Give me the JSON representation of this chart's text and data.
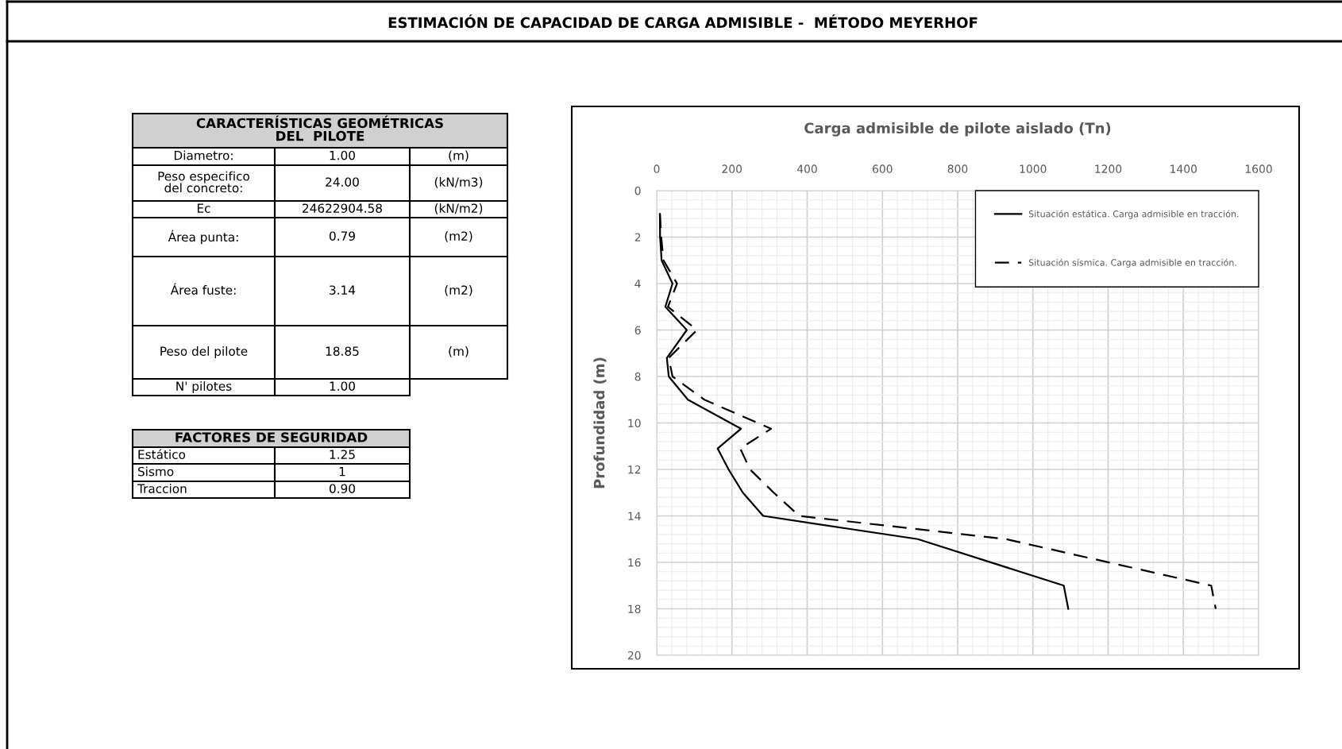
{
  "chart_data": [
    {
      "type": "other",
      "title": "ESTIMACIÓN DE CAPACIDAD DE CARGA ADMISIBLE -  MÉTODO MEYERHOF"
    },
    {
      "type": "other",
      "title": "CARACTERÍSTICAS GEOMÉTRICAS\nDEL  PILOTE",
      "annotations": [
        "Diametro:",
        "1.00",
        "(m)",
        "Peso especifico\ndel concreto:",
        "24.00",
        "(kN/m3)",
        "Ec",
        "24622904.58",
        "(kN/m2)",
        "Área punta:",
        "0.79",
        "(m2)",
        "Área fuste:",
        "3.14",
        "(m2)",
        "Peso del pilote",
        "18.85",
        "(m)",
        "N' pilotes",
        "1.00"
      ]
    },
    {
      "type": "other",
      "title": "FACTORES DE SEGURIDAD",
      "annotations": [
        "Estático",
        "1.25",
        "Sismo",
        "1",
        "Traccion",
        "0.90"
      ]
    },
    {
      "type": "line",
      "title": "Carga admisible de pilote aislado (Tn)",
      "ylabel": "Profundidad (m)",
      "xlim": [
        0,
        1600
      ],
      "xticks": [
        0,
        200,
        400,
        600,
        800,
        1000,
        1200,
        1400,
        1600
      ],
      "ylim": [
        20,
        0
      ],
      "yticks": [
        0,
        2,
        4,
        6,
        8,
        10,
        12,
        14,
        16,
        18,
        20
      ],
      "grid": true,
      "legend": "top right",
      "marker": "none",
      "series": [
        {
          "name": "Situación estática. Carga admisible en tracción.",
          "color": "#000000",
          "line_style": "solid",
          "x": [
            8.5,
            9,
            13,
            42,
            23,
            80,
            27,
            32,
            83,
            224,
            162,
            191,
            229,
            283,
            694,
            1082,
            1094
          ],
          "values": [
            1,
            2,
            3,
            4,
            5,
            6,
            7.2,
            8,
            9,
            10.25,
            11.1,
            12,
            13,
            14,
            15,
            17,
            18
          ]
        },
        {
          "name": "Situación sísmica. Carga admisible en tracción.",
          "color": "#000000",
          "line_style": "dashed",
          "x": [
            8.5,
            12,
            18,
            54,
            30,
            107,
            32,
            42,
            127,
            304,
            222,
            248,
            311,
            379,
            928,
            1474,
            1486
          ],
          "values": [
            1,
            2,
            3,
            4,
            5,
            6,
            7.2,
            8,
            9,
            10.25,
            11.1,
            12,
            13,
            14,
            15,
            17,
            18
          ]
        }
      ]
    }
  ]
}
